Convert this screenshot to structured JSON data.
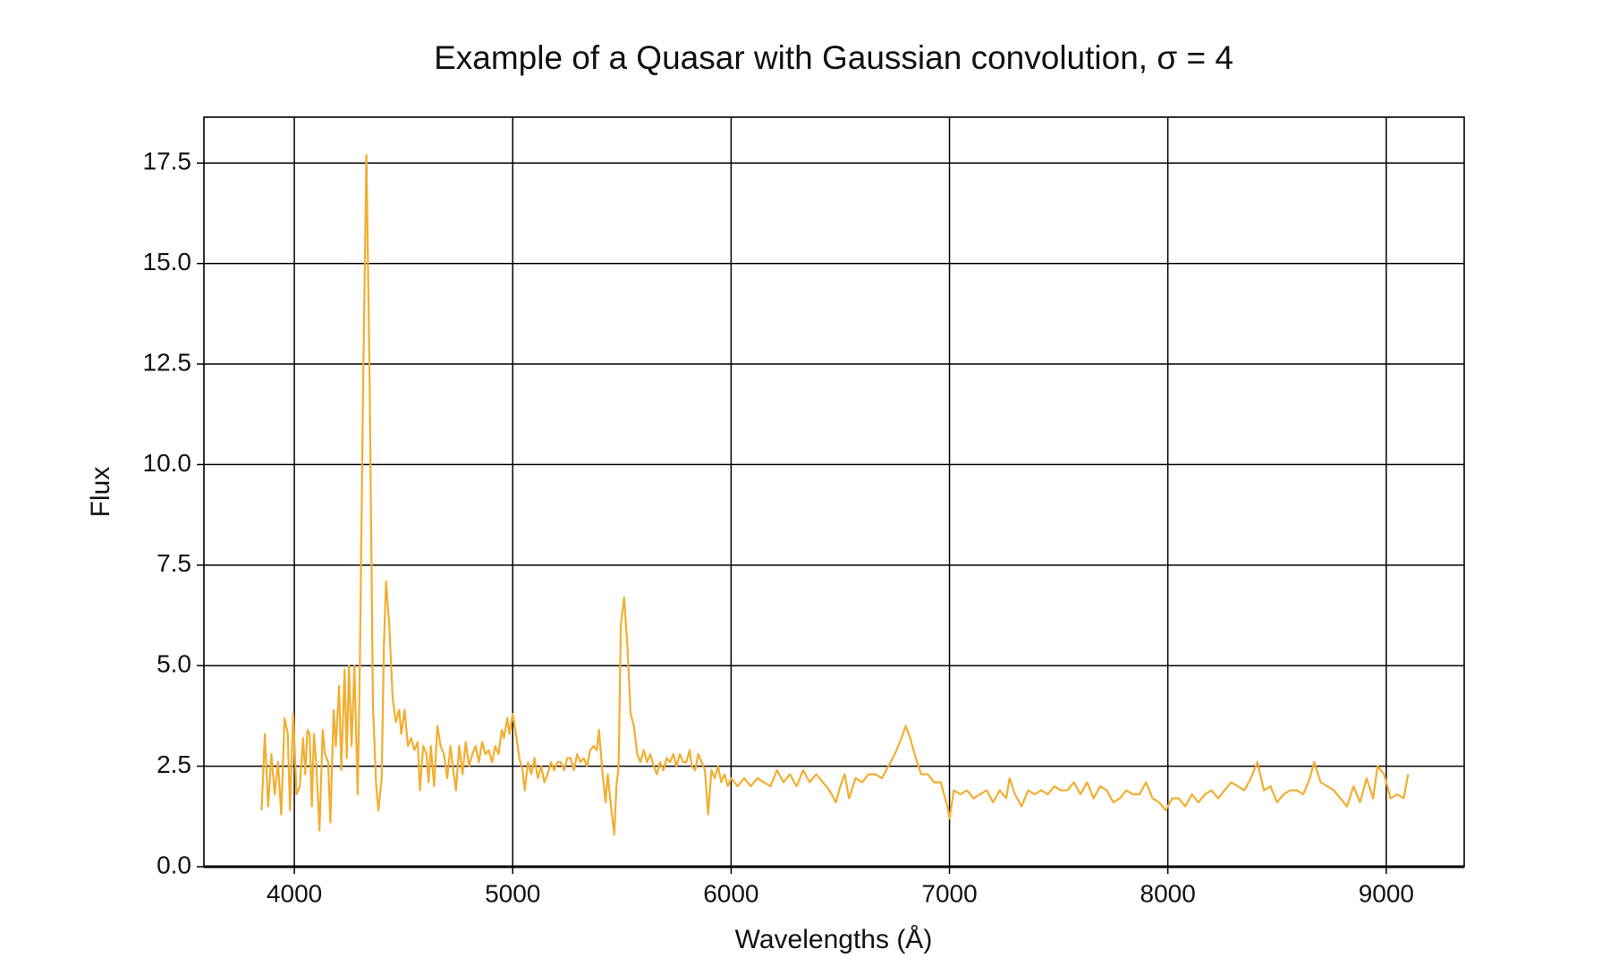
{
  "chart_data": {
    "type": "line",
    "title": "Example of a Quasar with Gaussian convolution, σ = 4",
    "x_label": "Wavelengths (Å)",
    "y_label": "Flux",
    "color": "#f2ae30",
    "grid": true,
    "xlim": [
      3586,
      9357
    ],
    "ylim": [
      0,
      18.64
    ],
    "xticks": [
      4000,
      5000,
      6000,
      7000,
      8000,
      9000
    ],
    "yticks": [
      {
        "value": 0,
        "label": "0.0"
      },
      2.5,
      {
        "value": 5,
        "label": "5.0"
      },
      7.5,
      {
        "value": 10,
        "label": "10.0"
      },
      12.5,
      {
        "value": 15,
        "label": "15.0"
      },
      17.5
    ],
    "x": [
      3850,
      3865,
      3880,
      3895,
      3910,
      3925,
      3940,
      3955,
      3970,
      3980,
      3995,
      4010,
      4025,
      4040,
      4050,
      4060,
      4070,
      4080,
      4090,
      4100,
      4115,
      4130,
      4140,
      4155,
      4165,
      4180,
      4190,
      4205,
      4215,
      4230,
      4240,
      4250,
      4262,
      4275,
      4290,
      4300,
      4315,
      4330,
      4345,
      4360,
      4375,
      4385,
      4400,
      4410,
      4420,
      4435,
      4450,
      4465,
      4480,
      4490,
      4505,
      4520,
      4535,
      4550,
      4565,
      4575,
      4590,
      4605,
      4615,
      4625,
      4640,
      4655,
      4670,
      4685,
      4700,
      4715,
      4725,
      4740,
      4755,
      4770,
      4785,
      4800,
      4815,
      4830,
      4845,
      4860,
      4875,
      4890,
      4905,
      4920,
      4935,
      4950,
      4960,
      4975,
      4985,
      5000,
      5015,
      5030,
      5045,
      5055,
      5070,
      5085,
      5100,
      5115,
      5130,
      5145,
      5160,
      5175,
      5190,
      5205,
      5220,
      5235,
      5250,
      5265,
      5280,
      5295,
      5310,
      5325,
      5340,
      5355,
      5370,
      5385,
      5395,
      5410,
      5425,
      5435,
      5450,
      5465,
      5475,
      5485,
      5495,
      5510,
      5525,
      5540,
      5555,
      5570,
      5585,
      5600,
      5615,
      5630,
      5645,
      5660,
      5675,
      5690,
      5705,
      5720,
      5735,
      5750,
      5765,
      5780,
      5795,
      5810,
      5820,
      5835,
      5850,
      5865,
      5880,
      5895,
      5910,
      5925,
      5940,
      5955,
      5970,
      5985,
      6000,
      6030,
      6060,
      6090,
      6120,
      6150,
      6180,
      6210,
      6240,
      6270,
      6300,
      6330,
      6360,
      6390,
      6420,
      6450,
      6480,
      6500,
      6520,
      6540,
      6570,
      6600,
      6630,
      6660,
      6690,
      6720,
      6750,
      6780,
      6800,
      6820,
      6840,
      6870,
      6900,
      6930,
      6960,
      6990,
      7000,
      7020,
      7050,
      7080,
      7110,
      7140,
      7170,
      7200,
      7230,
      7260,
      7275,
      7300,
      7330,
      7360,
      7390,
      7420,
      7450,
      7480,
      7510,
      7540,
      7570,
      7600,
      7630,
      7660,
      7690,
      7720,
      7750,
      7780,
      7810,
      7840,
      7870,
      7900,
      7930,
      7960,
      7990,
      8020,
      8050,
      8080,
      8110,
      8140,
      8170,
      8200,
      8230,
      8260,
      8290,
      8320,
      8350,
      8380,
      8410,
      8440,
      8470,
      8500,
      8530,
      8560,
      8590,
      8620,
      8650,
      8670,
      8700,
      8730,
      8760,
      8790,
      8820,
      8850,
      8880,
      8910,
      8940,
      8960,
      8990,
      9020,
      9050,
      9080,
      9100
    ],
    "values": [
      1.4,
      3.3,
      1.5,
      2.8,
      1.8,
      2.6,
      1.3,
      3.7,
      3.3,
      1.4,
      3.8,
      1.8,
      2.0,
      3.2,
      2.3,
      3.4,
      3.3,
      1.5,
      3.3,
      2.6,
      0.9,
      3.4,
      2.8,
      2.6,
      1.1,
      3.9,
      3.0,
      4.5,
      2.4,
      4.9,
      2.7,
      5.0,
      3.0,
      5.0,
      1.8,
      5.0,
      12.0,
      17.7,
      12.0,
      4.0,
      2.0,
      1.4,
      2.2,
      5.5,
      7.1,
      6.0,
      4.2,
      3.6,
      3.9,
      3.3,
      3.9,
      3.0,
      3.2,
      2.9,
      3.1,
      1.9,
      3.0,
      2.8,
      2.1,
      3.0,
      2.0,
      3.5,
      3.0,
      2.8,
      2.2,
      3.0,
      2.5,
      1.9,
      3.0,
      2.3,
      3.1,
      2.5,
      2.8,
      3.0,
      2.6,
      3.1,
      2.8,
      2.9,
      2.6,
      3.0,
      2.8,
      3.4,
      3.2,
      3.7,
      3.3,
      3.8,
      3.3,
      2.7,
      2.4,
      1.9,
      2.6,
      2.3,
      2.7,
      2.2,
      2.5,
      2.1,
      2.3,
      2.6,
      2.4,
      2.6,
      2.6,
      2.4,
      2.7,
      2.7,
      2.4,
      2.8,
      2.6,
      2.7,
      2.5,
      2.9,
      3.0,
      2.9,
      3.4,
      2.4,
      1.6,
      2.3,
      1.5,
      0.8,
      2.0,
      2.5,
      6.0,
      6.7,
      5.5,
      3.8,
      3.5,
      2.8,
      2.6,
      2.9,
      2.6,
      2.8,
      2.5,
      2.3,
      2.6,
      2.4,
      2.7,
      2.6,
      2.8,
      2.5,
      2.8,
      2.6,
      2.6,
      2.9,
      2.5,
      2.4,
      2.8,
      2.6,
      2.4,
      1.3,
      2.4,
      2.2,
      2.5,
      2.1,
      2.3,
      2.0,
      2.2,
      2.0,
      2.2,
      2.0,
      2.2,
      2.1,
      2.0,
      2.4,
      2.1,
      2.3,
      2.0,
      2.4,
      2.1,
      2.3,
      2.1,
      1.9,
      1.6,
      2.0,
      2.3,
      1.7,
      2.2,
      2.1,
      2.3,
      2.3,
      2.2,
      2.5,
      2.8,
      3.2,
      3.5,
      3.2,
      2.8,
      2.3,
      2.3,
      2.1,
      2.1,
      1.5,
      1.2,
      1.9,
      1.8,
      1.9,
      1.7,
      1.8,
      1.9,
      1.6,
      1.9,
      1.7,
      2.2,
      1.8,
      1.5,
      1.9,
      1.8,
      1.9,
      1.8,
      2.0,
      1.9,
      1.9,
      2.1,
      1.8,
      2.1,
      1.7,
      2.0,
      1.9,
      1.6,
      1.7,
      1.9,
      1.8,
      1.8,
      2.1,
      1.7,
      1.6,
      1.4,
      1.7,
      1.7,
      1.5,
      1.8,
      1.6,
      1.8,
      1.9,
      1.7,
      1.9,
      2.1,
      2.0,
      1.9,
      2.2,
      2.6,
      1.9,
      2.0,
      1.6,
      1.8,
      1.9,
      1.9,
      1.8,
      2.2,
      2.6,
      2.1,
      2.0,
      1.9,
      1.7,
      1.5,
      2.0,
      1.6,
      2.2,
      1.7,
      2.5,
      2.3,
      1.7,
      1.8,
      1.7,
      2.3
    ]
  }
}
